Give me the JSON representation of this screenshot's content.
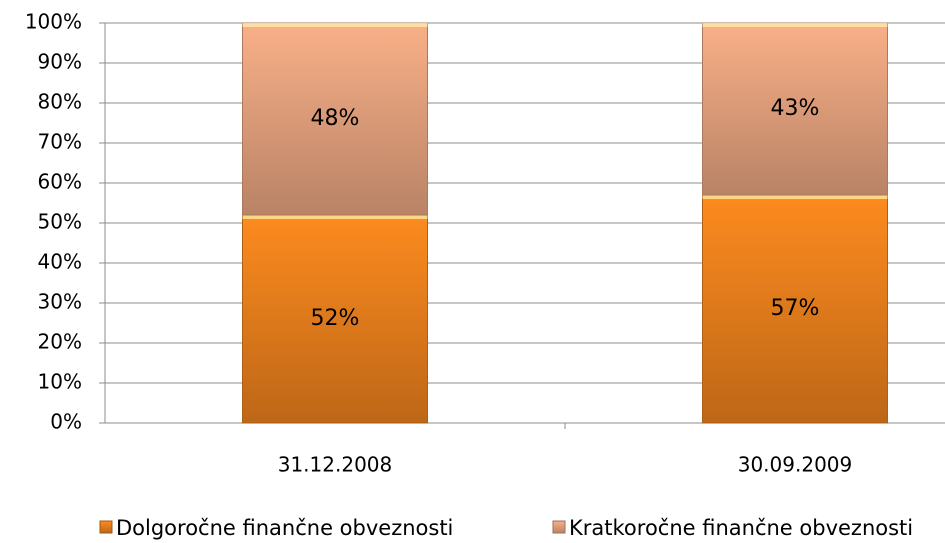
{
  "chart_data": {
    "type": "stacked_bar",
    "categories": [
      "31.12.2008",
      "30.09.2009"
    ],
    "series": [
      {
        "name": "Dolgoročne finančne obveznosti",
        "color": "#e67e1c",
        "values": [
          52,
          57
        ],
        "value_labels": [
          "52%",
          "57%"
        ]
      },
      {
        "name": "Kratkoročne finančne obveznosti",
        "color": "#e2a07c",
        "values": [
          48,
          43
        ],
        "value_labels": [
          "48%",
          "43%"
        ]
      }
    ],
    "ylim": [
      0,
      100
    ],
    "yticks": [
      {
        "value": 0,
        "label": "0%"
      },
      {
        "value": 10,
        "label": "10%"
      },
      {
        "value": 20,
        "label": "20%"
      },
      {
        "value": 30,
        "label": "30%"
      },
      {
        "value": 40,
        "label": "40%"
      },
      {
        "value": 50,
        "label": "50%"
      },
      {
        "value": 60,
        "label": "60%"
      },
      {
        "value": 70,
        "label": "70%"
      },
      {
        "value": 80,
        "label": "80%"
      },
      {
        "value": 90,
        "label": "90%"
      },
      {
        "value": 100,
        "label": "100%"
      }
    ],
    "grid": true
  }
}
